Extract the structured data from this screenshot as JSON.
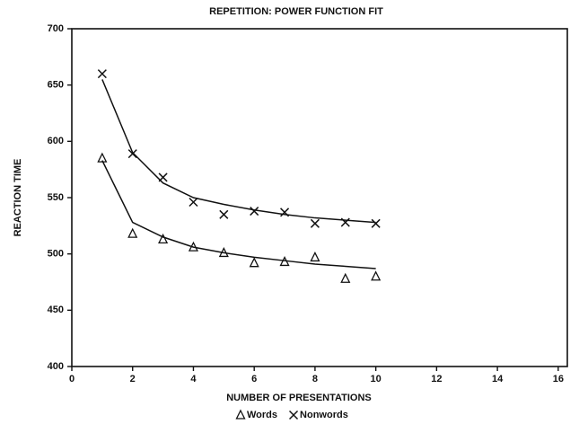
{
  "chart_data": {
    "type": "scatter",
    "title": "REPETITION: POWER FUNCTION FIT",
    "x_label": "NUMBER OF PRESENTATIONS",
    "y_label": "REACTION TIME",
    "xlim": [
      0,
      16.3
    ],
    "ylim": [
      400,
      700
    ],
    "xticks": [
      0,
      2,
      4,
      6,
      8,
      10,
      12,
      14,
      16
    ],
    "yticks": [
      400,
      450,
      500,
      550,
      600,
      650,
      700
    ],
    "x": [
      1,
      2,
      3,
      4,
      5,
      6,
      7,
      8,
      9,
      10
    ],
    "series": [
      {
        "name": "Words",
        "marker": "triangle",
        "color": "#111111",
        "values": [
          585,
          518,
          513,
          506,
          501,
          492,
          493,
          497,
          478,
          480
        ],
        "fit_values": [
          583,
          528,
          515,
          506,
          501,
          497,
          494,
          491,
          489,
          487
        ]
      },
      {
        "name": "Nonwords",
        "marker": "x",
        "color": "#111111",
        "values": [
          660,
          589,
          568,
          546,
          535,
          538,
          537,
          527,
          528,
          527
        ],
        "fit_values": [
          655,
          590,
          563,
          550,
          544,
          539,
          535,
          532,
          530,
          528
        ]
      }
    ]
  }
}
